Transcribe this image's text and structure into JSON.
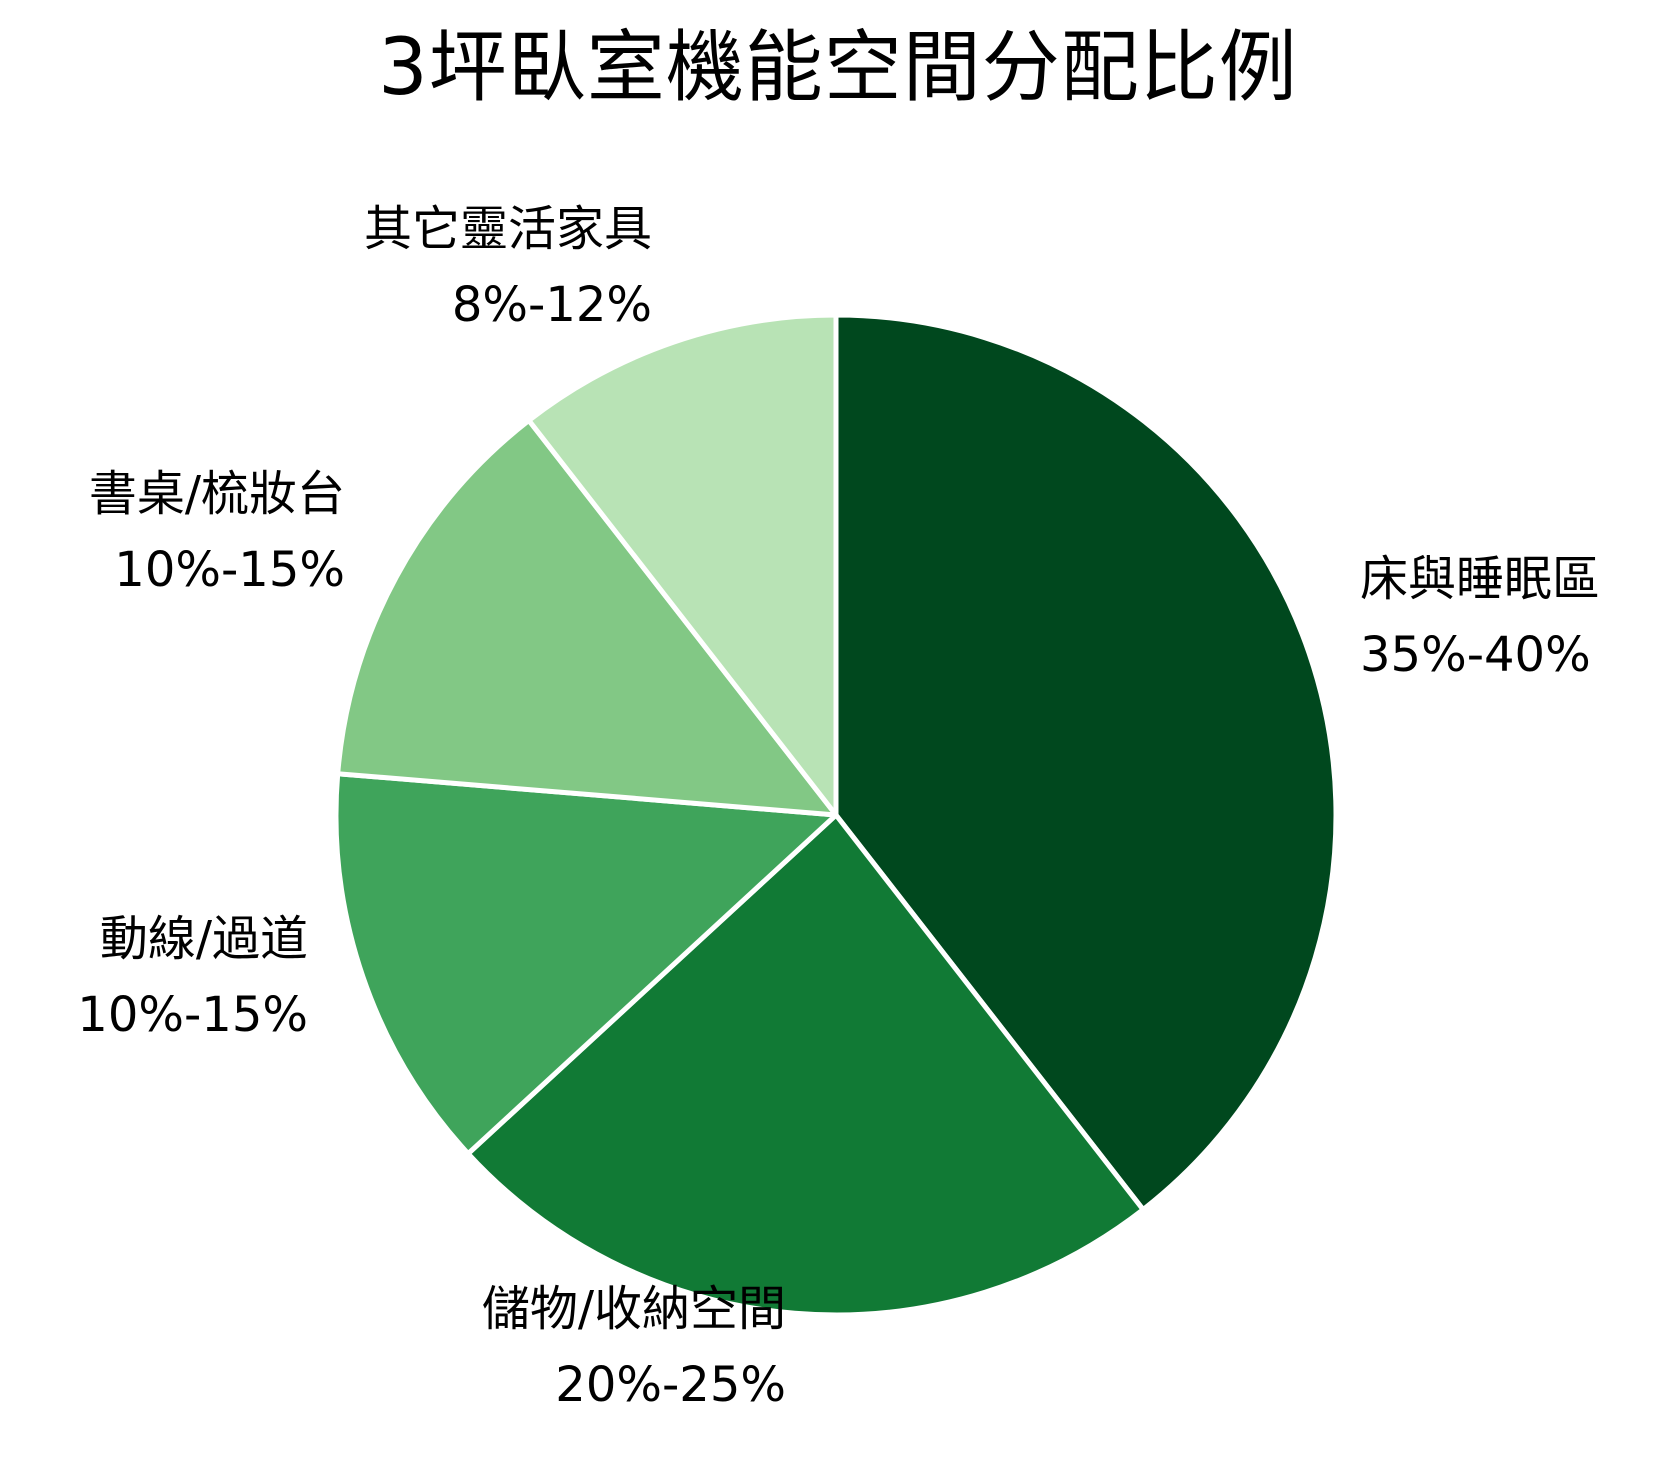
{
  "chart_data": {
    "type": "pie",
    "title": "3坪臥室機能空間分配比例",
    "categories": [
      "床與睡眠區",
      "儲物/收納空間",
      "動線/過道",
      "書桌/梳妝台",
      "其它靈活家具"
    ],
    "range_labels": [
      "35%-40%",
      "20%-25%",
      "10%-15%",
      "10%-15%",
      "8%-12%"
    ],
    "values": [
      37.5,
      22.5,
      12.5,
      12.5,
      10.0
    ],
    "colors": [
      "#00481e",
      "#117a35",
      "#3fa45b",
      "#82c885",
      "#b8e3b5"
    ],
    "start": "12 o'clock",
    "direction": "clockwise",
    "legend": "none (labels beside slices)"
  }
}
